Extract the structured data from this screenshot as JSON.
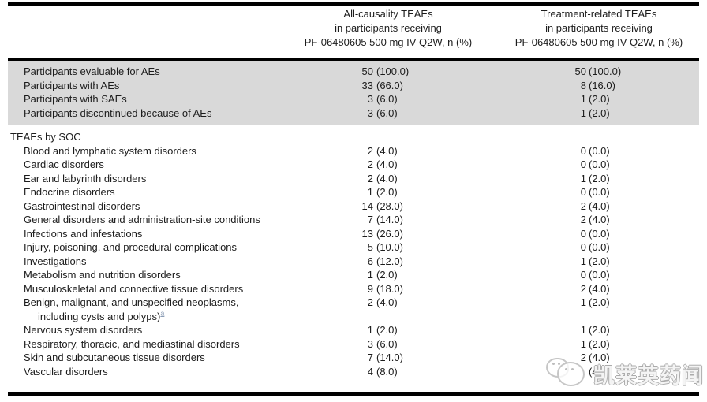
{
  "header": {
    "all_causality": {
      "line1": "All-causality TEAEs",
      "line2": "in participants receiving",
      "line3": "PF-06480605 500 mg IV Q2W, n (%)"
    },
    "treatment_related": {
      "line1": "Treatment-related TEAEs",
      "line2": "in participants receiving",
      "line3": "PF-06480605 500 mg IV Q2W, n (%)"
    }
  },
  "summary": {
    "rows": [
      {
        "label": "Participants evaluable for AEs",
        "c1n": "50",
        "c1p": "(100.0)",
        "c2n": "50",
        "c2p": "(100.0)"
      },
      {
        "label": "Participants with AEs",
        "c1n": "33",
        "c1p": "(66.0)",
        "c2n": "8",
        "c2p": "(16.0)"
      },
      {
        "label": "Participants with SAEs",
        "c1n": "3",
        "c1p": "(6.0)",
        "c2n": "1",
        "c2p": "(2.0)"
      },
      {
        "label": "Participants discontinued because of AEs",
        "c1n": "3",
        "c1p": "(6.0)",
        "c2n": "1",
        "c2p": "(2.0)"
      }
    ]
  },
  "soc": {
    "section_label": "TEAEs by SOC",
    "rows": [
      {
        "label": "Blood and lymphatic system disorders",
        "c1n": "2",
        "c1p": "(4.0)",
        "c2n": "0",
        "c2p": "(0.0)"
      },
      {
        "label": "Cardiac disorders",
        "c1n": "2",
        "c1p": "(4.0)",
        "c2n": "0",
        "c2p": "(0.0)"
      },
      {
        "label": "Ear and labyrinth disorders",
        "c1n": "2",
        "c1p": "(4.0)",
        "c2n": "1",
        "c2p": "(2.0)"
      },
      {
        "label": "Endocrine disorders",
        "c1n": "1",
        "c1p": "(2.0)",
        "c2n": "0",
        "c2p": "(0.0)"
      },
      {
        "label": "Gastrointestinal disorders",
        "c1n": "14",
        "c1p": "(28.0)",
        "c2n": "2",
        "c2p": "(4.0)"
      },
      {
        "label": "General disorders and administration-site conditions",
        "c1n": "7",
        "c1p": "(14.0)",
        "c2n": "2",
        "c2p": "(4.0)"
      },
      {
        "label": "Infections and infestations",
        "c1n": "13",
        "c1p": "(26.0)",
        "c2n": "0",
        "c2p": "(0.0)"
      },
      {
        "label": "Injury, poisoning, and procedural complications",
        "c1n": "5",
        "c1p": "(10.0)",
        "c2n": "0",
        "c2p": "(0.0)"
      },
      {
        "label": "Investigations",
        "c1n": "6",
        "c1p": "(12.0)",
        "c2n": "1",
        "c2p": "(2.0)"
      },
      {
        "label": "Metabolism and nutrition disorders",
        "c1n": "1",
        "c1p": "(2.0)",
        "c2n": "0",
        "c2p": "(0.0)"
      },
      {
        "label": "Musculoskeletal and connective tissue disorders",
        "c1n": "9",
        "c1p": "(18.0)",
        "c2n": "2",
        "c2p": "(4.0)"
      }
    ],
    "neoplasms_row": {
      "label_line1": "Benign, malignant, and unspecified neoplasms,",
      "label_line2": "including cysts and polyps)",
      "footnote_marker": "a",
      "c1n": "2",
      "c1p": "(4.0)",
      "c2n": "1",
      "c2p": "(2.0)"
    },
    "rows_after": [
      {
        "label": "Nervous system disorders",
        "c1n": "1",
        "c1p": "(2.0)",
        "c2n": "1",
        "c2p": "(2.0)"
      },
      {
        "label": "Respiratory, thoracic, and mediastinal disorders",
        "c1n": "3",
        "c1p": "(6.0)",
        "c2n": "1",
        "c2p": "(2.0)"
      },
      {
        "label": "Skin and subcutaneous tissue disorders",
        "c1n": "7",
        "c1p": "(14.0)",
        "c2n": "2",
        "c2p": "(4.0)"
      },
      {
        "label": "Vascular disorders",
        "c1n": "4",
        "c1p": "(8.0)",
        "c2n": "",
        "c2p": "(4"
      }
    ]
  },
  "watermark": {
    "text": "凯莱英药闻",
    "icon": "chat-bubbles-logo"
  },
  "colors": {
    "summary_band": "#d9d9d9",
    "footnote_link": "#8a9cb5",
    "rule": "#000000"
  }
}
